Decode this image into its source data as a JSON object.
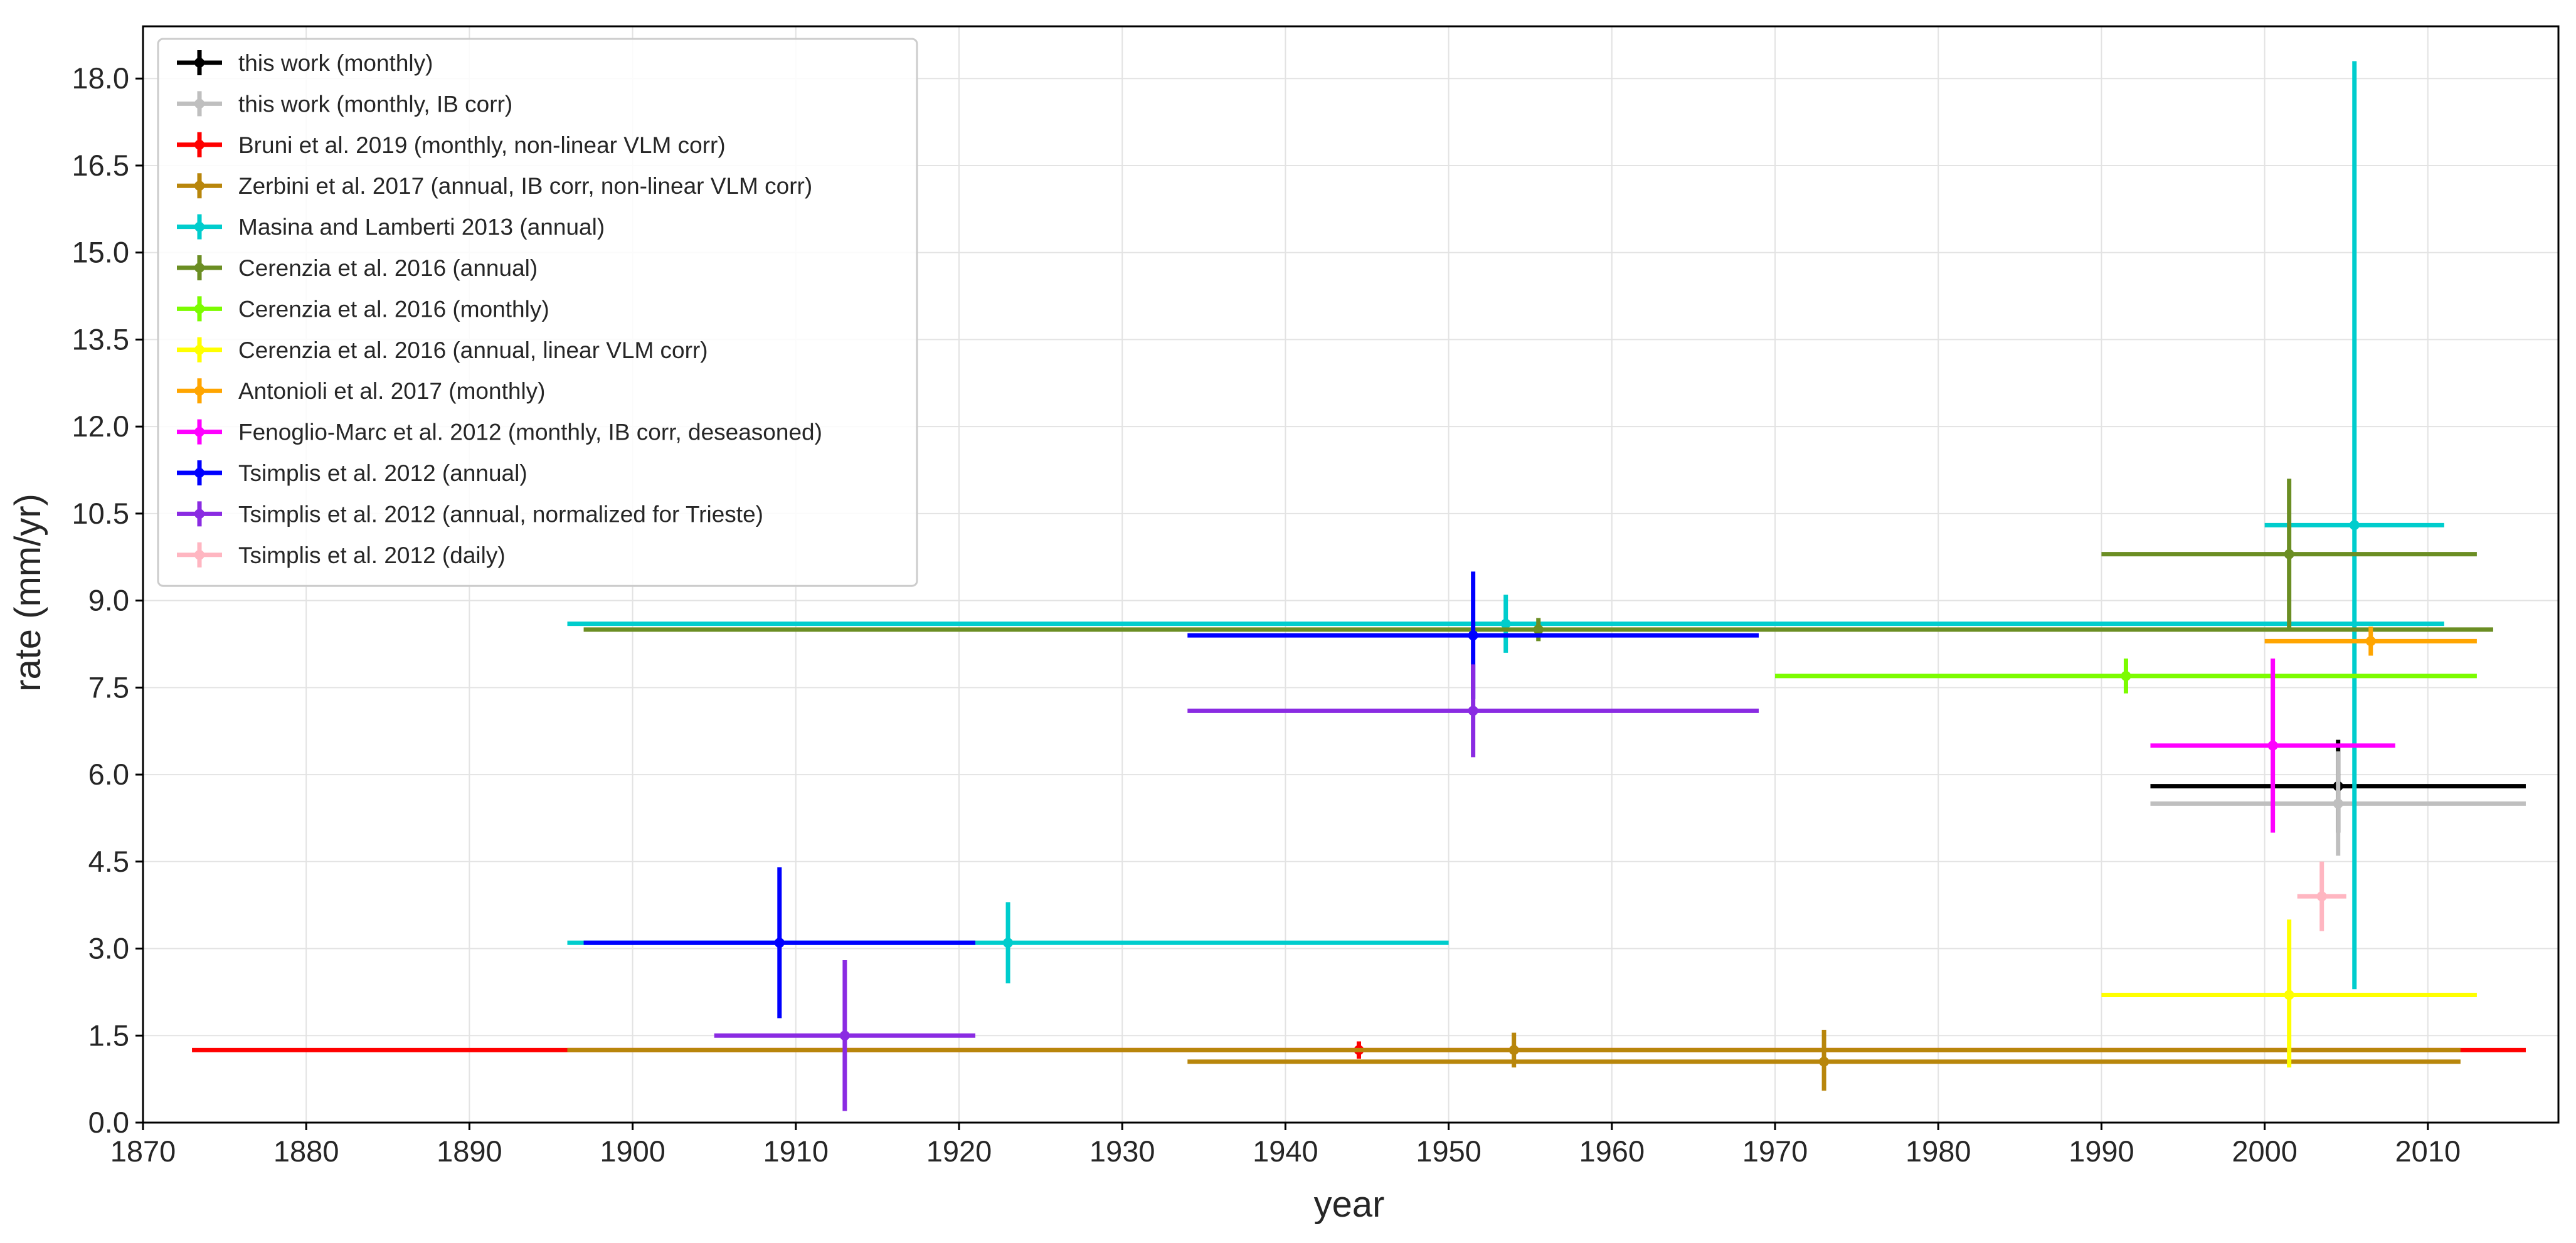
{
  "chart_data": {
    "type": "scatter",
    "subtype": "errorbar",
    "title": "",
    "xlabel": "year",
    "ylabel": "rate (mm/yr)",
    "xlim": [
      1870,
      2018
    ],
    "ylim": [
      0,
      18.9
    ],
    "xticks": [
      1870,
      1880,
      1890,
      1900,
      1910,
      1920,
      1930,
      1940,
      1950,
      1960,
      1970,
      1980,
      1990,
      2000,
      2010
    ],
    "yticks": [
      0.0,
      1.5,
      3.0,
      4.5,
      6.0,
      7.5,
      9.0,
      10.5,
      12.0,
      13.5,
      15.0,
      16.5,
      18.0
    ],
    "xtick_labels": [
      "1870",
      "1880",
      "1890",
      "1900",
      "1910",
      "1920",
      "1930",
      "1940",
      "1950",
      "1960",
      "1970",
      "1980",
      "1990",
      "2000",
      "2010"
    ],
    "ytick_labels": [
      "0.0",
      "1.5",
      "3.0",
      "4.5",
      "6.0",
      "7.5",
      "9.0",
      "10.5",
      "12.0",
      "13.5",
      "15.0",
      "16.5",
      "18.0"
    ],
    "grid": true,
    "legend_position": "top-left",
    "series": [
      {
        "name": "this work (monthly)",
        "color": "#000000",
        "points": [
          {
            "x": 2004.5,
            "y": 5.8,
            "x_from": 1993,
            "x_to": 2016,
            "y_from": 5.0,
            "y_to": 6.6
          }
        ]
      },
      {
        "name": "this work (monthly, IB corr)",
        "color": "#bfbfbf",
        "points": [
          {
            "x": 2004.5,
            "y": 5.5,
            "x_from": 1993,
            "x_to": 2016,
            "y_from": 4.6,
            "y_to": 6.4
          }
        ]
      },
      {
        "name": "Bruni et al. 2019 (monthly, non-linear VLM corr)",
        "color": "#ff0000",
        "points": [
          {
            "x": 1944.5,
            "y": 1.25,
            "x_from": 1873,
            "x_to": 2016,
            "y_from": 1.1,
            "y_to": 1.4
          }
        ]
      },
      {
        "name": "Zerbini et al. 2017 (annual, IB corr, non-linear VLM corr)",
        "color": "#b8860b",
        "points": [
          {
            "x": 1954,
            "y": 1.25,
            "x_from": 1896,
            "x_to": 2012,
            "y_from": 0.95,
            "y_to": 1.55
          },
          {
            "x": 1973,
            "y": 1.05,
            "x_from": 1934,
            "x_to": 2012,
            "y_from": 0.55,
            "y_to": 1.6
          }
        ]
      },
      {
        "name": "Masina and Lamberti 2013 (annual)",
        "color": "#00cdcd",
        "points": [
          {
            "x": 1923,
            "y": 3.1,
            "x_from": 1896,
            "x_to": 1950,
            "y_from": 2.4,
            "y_to": 3.8
          },
          {
            "x": 1953.5,
            "y": 8.6,
            "x_from": 1896,
            "x_to": 2011,
            "y_from": 8.1,
            "y_to": 9.1
          },
          {
            "x": 2005.5,
            "y": 10.3,
            "x_from": 2000,
            "x_to": 2011,
            "y_from": 2.3,
            "y_to": 18.3
          }
        ]
      },
      {
        "name": "Cerenzia et al. 2016 (annual)",
        "color": "#6b8e23",
        "points": [
          {
            "x": 1955.5,
            "y": 8.5,
            "x_from": 1897,
            "x_to": 2014,
            "y_from": 8.3,
            "y_to": 8.7
          },
          {
            "x": 2001.5,
            "y": 9.8,
            "x_from": 1990,
            "x_to": 2013,
            "y_from": 8.5,
            "y_to": 11.1
          }
        ]
      },
      {
        "name": "Cerenzia et al. 2016 (monthly)",
        "color": "#7cfc00",
        "points": [
          {
            "x": 1991.5,
            "y": 7.7,
            "x_from": 1970,
            "x_to": 2013,
            "y_from": 7.4,
            "y_to": 8.0
          }
        ]
      },
      {
        "name": "Cerenzia et al. 2016 (annual, linear VLM corr)",
        "color": "#ffff00",
        "points": [
          {
            "x": 2001.5,
            "y": 2.2,
            "x_from": 1990,
            "x_to": 2013,
            "y_from": 0.95,
            "y_to": 3.5
          }
        ]
      },
      {
        "name": "Antonioli et al. 2017 (monthly)",
        "color": "#ffa500",
        "points": [
          {
            "x": 2006.5,
            "y": 8.3,
            "x_from": 2000,
            "x_to": 2013,
            "y_from": 8.05,
            "y_to": 8.55
          }
        ]
      },
      {
        "name": "Fenoglio-Marc et al. 2012 (monthly, IB corr, deseasoned)",
        "color": "#ff00ff",
        "points": [
          {
            "x": 2000.5,
            "y": 6.5,
            "x_from": 1993,
            "x_to": 2008,
            "y_from": 5.0,
            "y_to": 8.0
          }
        ]
      },
      {
        "name": "Tsimplis et al. 2012 (annual)",
        "color": "#0000ff",
        "points": [
          {
            "x": 1909,
            "y": 3.1,
            "x_from": 1897,
            "x_to": 1921,
            "y_from": 1.8,
            "y_to": 4.4
          },
          {
            "x": 1951.5,
            "y": 8.4,
            "x_from": 1934,
            "x_to": 1969,
            "y_from": 7.3,
            "y_to": 9.5
          }
        ]
      },
      {
        "name": "Tsimplis et al. 2012 (annual, normalized for Trieste)",
        "color": "#8a2be2",
        "points": [
          {
            "x": 1913,
            "y": 1.5,
            "x_from": 1905,
            "x_to": 1921,
            "y_from": 0.2,
            "y_to": 2.8
          },
          {
            "x": 1951.5,
            "y": 7.1,
            "x_from": 1934,
            "x_to": 1969,
            "y_from": 6.3,
            "y_to": 7.9
          }
        ]
      },
      {
        "name": "Tsimplis et al. 2012 (daily)",
        "color": "#ffb6c1",
        "points": [
          {
            "x": 2003.5,
            "y": 3.9,
            "x_from": 2002,
            "x_to": 2005,
            "y_from": 3.3,
            "y_to": 4.5
          }
        ]
      }
    ]
  }
}
